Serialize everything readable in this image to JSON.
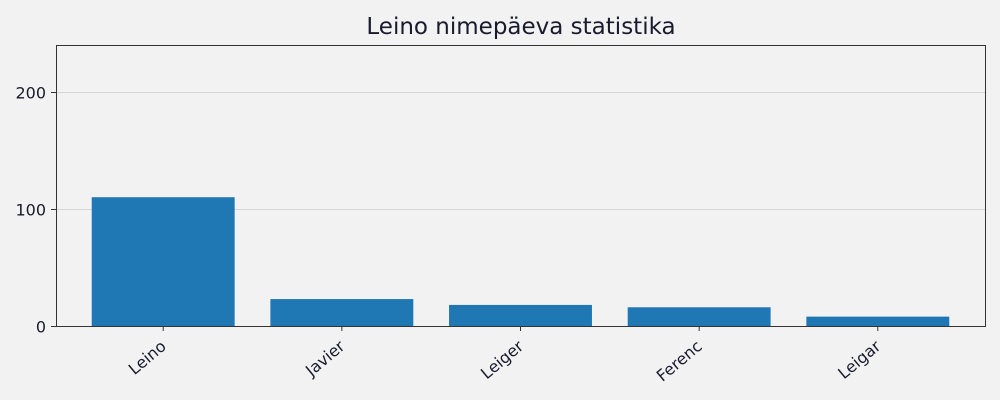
{
  "chart_data": {
    "type": "bar",
    "title": "Leino nimepäeva statistika",
    "xlabel": "",
    "ylabel": "",
    "categories": [
      "Leino",
      "Javier",
      "Leiger",
      "Ferenc",
      "Leigar"
    ],
    "values": [
      110,
      23,
      18,
      16,
      8
    ],
    "ylim": [
      0,
      240
    ],
    "yticks": [
      0,
      100,
      200
    ],
    "grid": true,
    "bar_color": "#1f77b4",
    "background_color": "#f2f2f2"
  }
}
